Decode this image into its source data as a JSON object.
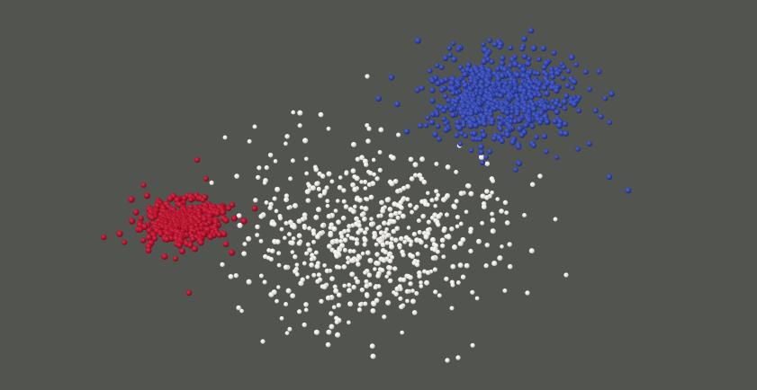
{
  "scene": {
    "background": "#525450",
    "clusters": [
      {
        "name": "red-cluster",
        "color": "#b0102a",
        "shadow": "#6a0616",
        "highlight": "#d8344c",
        "point_count": 420,
        "spread": "dense"
      },
      {
        "name": "white-cluster",
        "color": "#e6e4de",
        "shadow": "#a9a7a0",
        "highlight": "#ffffff",
        "point_count": 620,
        "spread": "sparse"
      },
      {
        "name": "blue-cluster",
        "color": "#2f43a8",
        "shadow": "#1a2566",
        "highlight": "#5467cf",
        "point_count": 680,
        "spread": "dense"
      }
    ]
  }
}
